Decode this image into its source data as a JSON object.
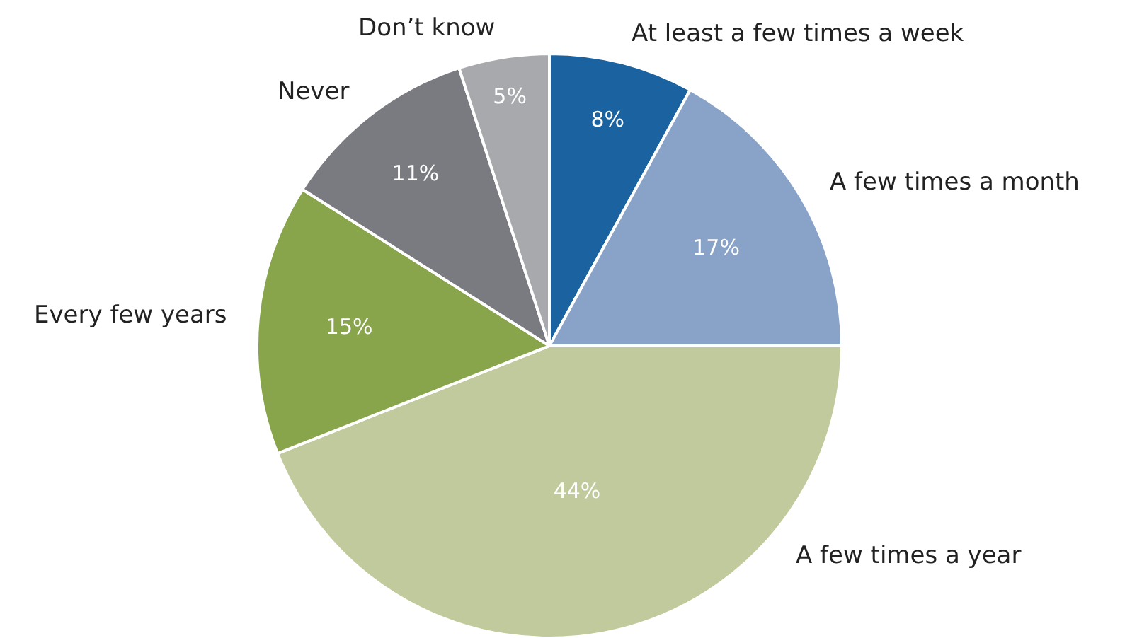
{
  "chart_data": {
    "type": "pie",
    "categories": [
      "At least a few times a week",
      "A few times a month",
      "A few times a year",
      "Every few years",
      "Never",
      "Don’t know"
    ],
    "values": [
      8,
      17,
      44,
      15,
      11,
      5
    ],
    "value_labels": [
      "8%",
      "17%",
      "44%",
      "15%",
      "11%",
      "5%"
    ],
    "colors": [
      "#1b63a0",
      "#88a2c8",
      "#c0ca9c",
      "#88a54b",
      "#7a7b80",
      "#a7a9ad"
    ]
  }
}
